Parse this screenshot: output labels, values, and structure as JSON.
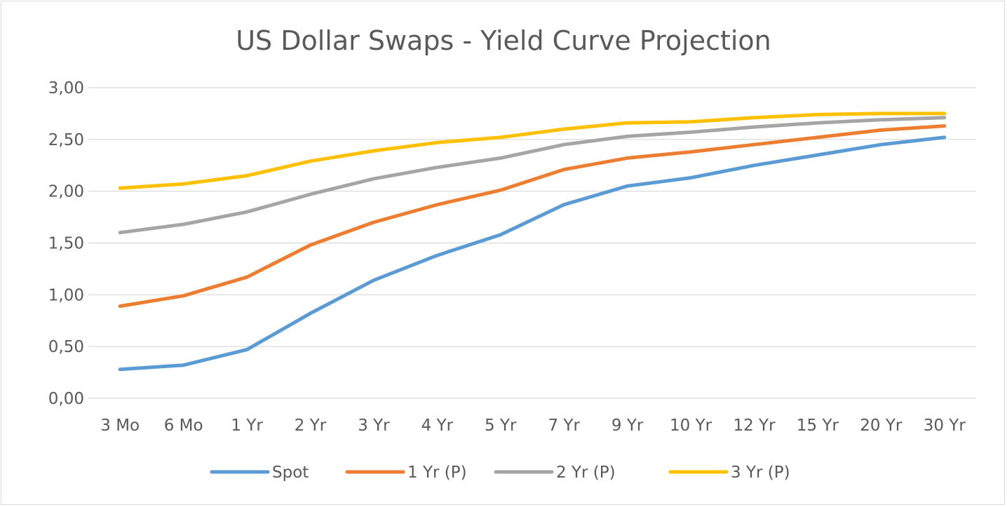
{
  "chart_data": {
    "type": "line",
    "title": "US Dollar Swaps - Yield Curve Projection",
    "xlabel": "",
    "ylabel": "",
    "categories": [
      "3 Mo",
      "6 Mo",
      "1 Yr",
      "2 Yr",
      "3 Yr",
      "4 Yr",
      "5 Yr",
      "7 Yr",
      "9 Yr",
      "10 Yr",
      "12 Yr",
      "15 Yr",
      "20 Yr",
      "30 Yr"
    ],
    "ylim": [
      0,
      3
    ],
    "yticks": [
      "0,00",
      "0,50",
      "1,00",
      "1,50",
      "2,00",
      "2,50",
      "3,00"
    ],
    "ytick_values": [
      0,
      0.5,
      1,
      1.5,
      2,
      2.5,
      3
    ],
    "grid": true,
    "legend_position": "bottom",
    "series": [
      {
        "name": "Spot",
        "color": "#5b9bd5",
        "values": [
          0.28,
          0.32,
          0.47,
          0.82,
          1.14,
          1.38,
          1.58,
          1.87,
          2.05,
          2.13,
          2.25,
          2.35,
          2.45,
          2.52
        ]
      },
      {
        "name": "1 Yr (P)",
        "color": "#ed7d31",
        "values": [
          0.89,
          0.99,
          1.17,
          1.48,
          1.7,
          1.87,
          2.01,
          2.21,
          2.32,
          2.38,
          2.45,
          2.52,
          2.59,
          2.63
        ]
      },
      {
        "name": "2 Yr (P)",
        "color": "#a5a5a5",
        "values": [
          1.6,
          1.68,
          1.8,
          1.97,
          2.12,
          2.23,
          2.32,
          2.45,
          2.53,
          2.57,
          2.62,
          2.66,
          2.69,
          2.71
        ]
      },
      {
        "name": "3 Yr (P)",
        "color": "#ffc000",
        "values": [
          2.03,
          2.07,
          2.15,
          2.29,
          2.39,
          2.47,
          2.52,
          2.6,
          2.66,
          2.67,
          2.71,
          2.74,
          2.75,
          2.75
        ]
      }
    ]
  }
}
